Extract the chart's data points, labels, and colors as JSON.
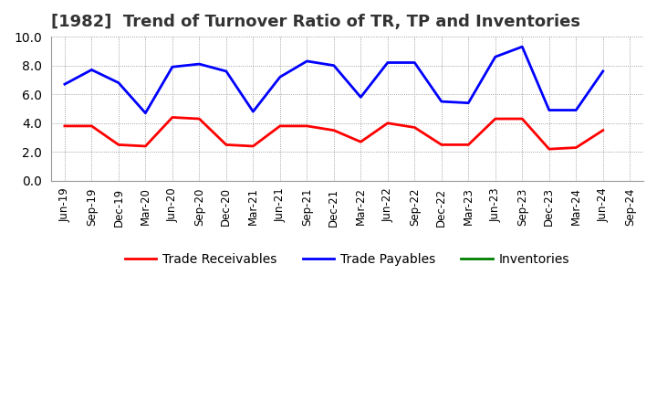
{
  "title": "[1982]  Trend of Turnover Ratio of TR, TP and Inventories",
  "labels": [
    "Jun-19",
    "Sep-19",
    "Dec-19",
    "Mar-20",
    "Jun-20",
    "Sep-20",
    "Dec-20",
    "Mar-21",
    "Jun-21",
    "Sep-21",
    "Dec-21",
    "Mar-22",
    "Jun-22",
    "Sep-22",
    "Dec-22",
    "Mar-23",
    "Jun-23",
    "Sep-23",
    "Dec-23",
    "Mar-24",
    "Jun-24",
    "Sep-24"
  ],
  "trade_receivables": [
    3.8,
    3.8,
    2.5,
    2.4,
    4.4,
    4.3,
    2.5,
    2.4,
    3.8,
    3.8,
    3.5,
    2.7,
    4.0,
    3.7,
    2.5,
    2.5,
    4.3,
    4.3,
    2.2,
    2.3,
    3.5,
    null
  ],
  "trade_payables": [
    6.7,
    7.7,
    6.8,
    4.7,
    7.9,
    8.1,
    7.6,
    4.8,
    7.2,
    8.3,
    8.0,
    5.8,
    8.2,
    8.2,
    5.5,
    5.4,
    8.6,
    9.3,
    4.9,
    4.9,
    7.6,
    null
  ],
  "inventories": [
    null,
    null,
    null,
    null,
    null,
    null,
    null,
    null,
    null,
    null,
    null,
    null,
    null,
    null,
    null,
    null,
    null,
    null,
    null,
    null,
    null,
    null
  ],
  "tr_color": "#FF0000",
  "tp_color": "#0000FF",
  "inv_color": "#008000",
  "ylim": [
    0.0,
    10.0
  ],
  "yticks": [
    0.0,
    2.0,
    4.0,
    6.0,
    8.0,
    10.0
  ],
  "grid_color": "#888888",
  "background_color": "#ffffff",
  "legend_labels": [
    "Trade Receivables",
    "Trade Payables",
    "Inventories"
  ],
  "title_fontsize": 13,
  "tick_fontsize": 8.5,
  "legend_fontsize": 10
}
